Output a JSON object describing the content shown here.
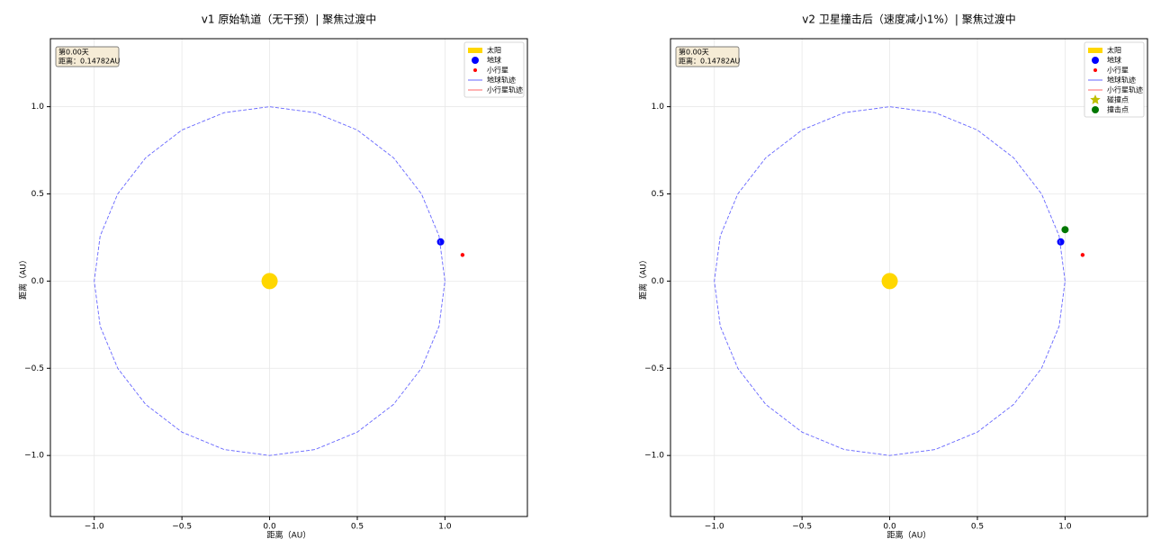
{
  "chart_data": [
    {
      "type": "scatter",
      "title": "v1 原始轨道（无干预）| 聚焦过渡中",
      "xlabel": "距离（AU）",
      "ylabel": "距离（AU）",
      "xlim": [
        -1.25,
        1.47
      ],
      "ylim": [
        -1.35,
        1.39
      ],
      "xticks": [
        {
          "value": -1.0,
          "label": "−1.0"
        },
        {
          "value": -0.5,
          "label": "−0.5"
        },
        {
          "value": 0,
          "label": "0.0"
        },
        0.5,
        {
          "value": 1.0,
          "label": "1.0"
        }
      ],
      "yticks": [
        {
          "value": -1.0,
          "label": "−1.0"
        },
        {
          "value": -0.5,
          "label": "−0.5"
        },
        {
          "value": 0,
          "label": "0.0"
        },
        0.5,
        {
          "value": 1.0,
          "label": "1.0"
        }
      ],
      "grid": true,
      "legend": "upper right",
      "annotation": [
        "第0.00天",
        "距离：0.14782AU"
      ],
      "series": [
        {
          "name": "太阳",
          "color": "#ffd700",
          "marker": "sun",
          "x": [
            0
          ],
          "y": [
            0
          ]
        },
        {
          "name": "地球",
          "color": "#0000ff",
          "marker": "planet",
          "x": [
            0.975
          ],
          "y": [
            0.225
          ]
        },
        {
          "name": "小行星",
          "color": "#ff0000",
          "marker": "dot",
          "x": [
            1.1
          ],
          "y": [
            0.15
          ]
        },
        {
          "name": "地球轨迹",
          "color": "#6666ff",
          "marker": "line",
          "x": [
            1,
            0.966,
            0.866,
            0.707,
            0.5,
            0.259,
            0,
            -0.259,
            -0.5,
            -0.707,
            -0.866,
            -0.966,
            -1,
            -0.966,
            -0.866,
            -0.707,
            -0.5,
            -0.259,
            0,
            0.259,
            0.5,
            0.707,
            0.866,
            0.966,
            1
          ],
          "y": [
            0,
            0.259,
            0.5,
            0.707,
            0.866,
            0.966,
            1,
            0.966,
            0.866,
            0.707,
            0.5,
            0.259,
            0,
            -0.259,
            -0.5,
            -0.707,
            -0.866,
            -0.966,
            -1,
            -0.966,
            -0.866,
            -0.707,
            -0.5,
            -0.259,
            0
          ]
        },
        {
          "name": "小行星轨迹",
          "color": "#ff6666",
          "marker": "line",
          "x": [],
          "y": []
        }
      ]
    },
    {
      "type": "scatter",
      "title": "v2 卫星撞击后（速度减小1%）| 聚焦过渡中",
      "xlabel": "距离（AU）",
      "ylabel": "距离（AU）",
      "xlim": [
        -1.25,
        1.47
      ],
      "ylim": [
        -1.35,
        1.39
      ],
      "xticks": [
        {
          "value": -1.0,
          "label": "−1.0"
        },
        {
          "value": -0.5,
          "label": "−0.5"
        },
        {
          "value": 0,
          "label": "0.0"
        },
        0.5,
        {
          "value": 1.0,
          "label": "1.0"
        }
      ],
      "yticks": [
        {
          "value": -1.0,
          "label": "−1.0"
        },
        {
          "value": -0.5,
          "label": "−0.5"
        },
        {
          "value": 0,
          "label": "0.0"
        },
        0.5,
        {
          "value": 1.0,
          "label": "1.0"
        }
      ],
      "grid": true,
      "legend": "upper right",
      "annotation": [
        "第0.00天",
        "距离：0.14782AU"
      ],
      "series": [
        {
          "name": "太阳",
          "color": "#ffd700",
          "marker": "sun",
          "x": [
            0
          ],
          "y": [
            0
          ]
        },
        {
          "name": "地球",
          "color": "#0000ff",
          "marker": "planet",
          "x": [
            0.975
          ],
          "y": [
            0.225
          ]
        },
        {
          "name": "小行星",
          "color": "#ff0000",
          "marker": "dot",
          "x": [
            1.1
          ],
          "y": [
            0.15
          ]
        },
        {
          "name": "地球轨迹",
          "color": "#6666ff",
          "marker": "line",
          "x": [
            1,
            0.966,
            0.866,
            0.707,
            0.5,
            0.259,
            0,
            -0.259,
            -0.5,
            -0.707,
            -0.866,
            -0.966,
            -1,
            -0.966,
            -0.866,
            -0.707,
            -0.5,
            -0.259,
            0,
            0.259,
            0.5,
            0.707,
            0.866,
            0.966,
            1
          ],
          "y": [
            0,
            0.259,
            0.5,
            0.707,
            0.866,
            0.966,
            1,
            0.966,
            0.866,
            0.707,
            0.5,
            0.259,
            0,
            -0.259,
            -0.5,
            -0.707,
            -0.866,
            -0.966,
            -1,
            -0.966,
            -0.866,
            -0.707,
            -0.5,
            -0.259,
            0
          ]
        },
        {
          "name": "小行星轨迹",
          "color": "#ff6666",
          "marker": "line",
          "x": [],
          "y": []
        },
        {
          "name": "碰撞点",
          "color": "#bfbf00",
          "marker": "star",
          "x": [],
          "y": []
        },
        {
          "name": "撞击点",
          "color": "#007700",
          "marker": "planet",
          "x": [
            1.0
          ],
          "y": [
            0.295
          ]
        }
      ]
    }
  ]
}
